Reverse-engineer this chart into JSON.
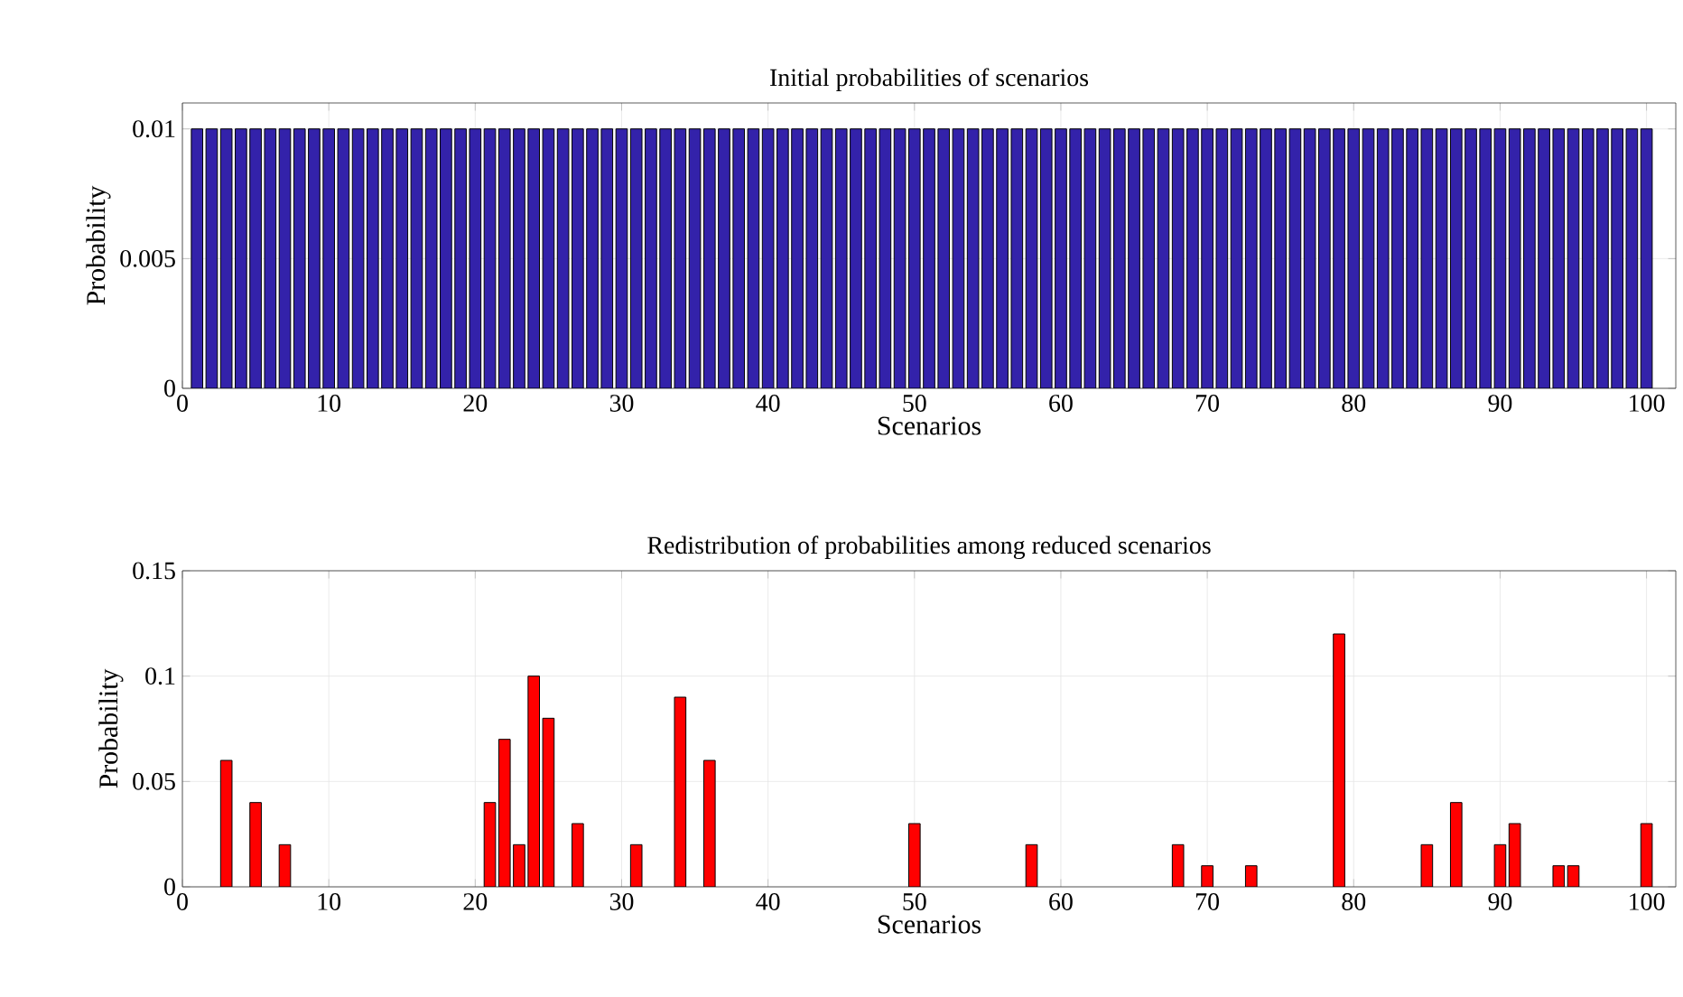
{
  "chart_data": [
    {
      "type": "bar",
      "title": "Initial probabilities of scenarios",
      "xlabel": "Scenarios",
      "ylabel": "Probability",
      "x": [
        1,
        2,
        3,
        4,
        5,
        6,
        7,
        8,
        9,
        10,
        11,
        12,
        13,
        14,
        15,
        16,
        17,
        18,
        19,
        20,
        21,
        22,
        23,
        24,
        25,
        26,
        27,
        28,
        29,
        30,
        31,
        32,
        33,
        34,
        35,
        36,
        37,
        38,
        39,
        40,
        41,
        42,
        43,
        44,
        45,
        46,
        47,
        48,
        49,
        50,
        51,
        52,
        53,
        54,
        55,
        56,
        57,
        58,
        59,
        60,
        61,
        62,
        63,
        64,
        65,
        66,
        67,
        68,
        69,
        70,
        71,
        72,
        73,
        74,
        75,
        76,
        77,
        78,
        79,
        80,
        81,
        82,
        83,
        84,
        85,
        86,
        87,
        88,
        89,
        90,
        91,
        92,
        93,
        94,
        95,
        96,
        97,
        98,
        99,
        100
      ],
      "values": [
        0.01,
        0.01,
        0.01,
        0.01,
        0.01,
        0.01,
        0.01,
        0.01,
        0.01,
        0.01,
        0.01,
        0.01,
        0.01,
        0.01,
        0.01,
        0.01,
        0.01,
        0.01,
        0.01,
        0.01,
        0.01,
        0.01,
        0.01,
        0.01,
        0.01,
        0.01,
        0.01,
        0.01,
        0.01,
        0.01,
        0.01,
        0.01,
        0.01,
        0.01,
        0.01,
        0.01,
        0.01,
        0.01,
        0.01,
        0.01,
        0.01,
        0.01,
        0.01,
        0.01,
        0.01,
        0.01,
        0.01,
        0.01,
        0.01,
        0.01,
        0.01,
        0.01,
        0.01,
        0.01,
        0.01,
        0.01,
        0.01,
        0.01,
        0.01,
        0.01,
        0.01,
        0.01,
        0.01,
        0.01,
        0.01,
        0.01,
        0.01,
        0.01,
        0.01,
        0.01,
        0.01,
        0.01,
        0.01,
        0.01,
        0.01,
        0.01,
        0.01,
        0.01,
        0.01,
        0.01,
        0.01,
        0.01,
        0.01,
        0.01,
        0.01,
        0.01,
        0.01,
        0.01,
        0.01,
        0.01,
        0.01,
        0.01,
        0.01,
        0.01,
        0.01,
        0.01,
        0.01,
        0.01,
        0.01,
        0.01
      ],
      "color": "#3322aa",
      "xlim": [
        0,
        102
      ],
      "xticks": [
        0,
        10,
        20,
        30,
        40,
        50,
        60,
        70,
        80,
        90,
        100
      ],
      "ylim": [
        0,
        0.011
      ],
      "yticks": [
        0,
        0.005,
        0.01
      ],
      "grid": true
    },
    {
      "type": "bar",
      "title": "Redistribution of probabilities among reduced scenarios",
      "xlabel": "Scenarios",
      "ylabel": "Probability",
      "x": [
        3,
        5,
        7,
        21,
        22,
        23,
        24,
        25,
        27,
        31,
        34,
        36,
        50,
        58,
        68,
        70,
        73,
        79,
        85,
        87,
        90,
        91,
        94,
        95,
        100
      ],
      "values": [
        0.06,
        0.04,
        0.02,
        0.04,
        0.07,
        0.02,
        0.1,
        0.08,
        0.03,
        0.02,
        0.09,
        0.06,
        0.03,
        0.02,
        0.02,
        0.01,
        0.01,
        0.12,
        0.02,
        0.04,
        0.02,
        0.03,
        0.01,
        0.01,
        0.03
      ],
      "color": "#ff0000",
      "xlim": [
        0,
        102
      ],
      "xticks": [
        0,
        10,
        20,
        30,
        40,
        50,
        60,
        70,
        80,
        90,
        100
      ],
      "ylim": [
        0,
        0.15
      ],
      "yticks": [
        0,
        0.05,
        0.1,
        0.15
      ],
      "grid": true
    }
  ]
}
